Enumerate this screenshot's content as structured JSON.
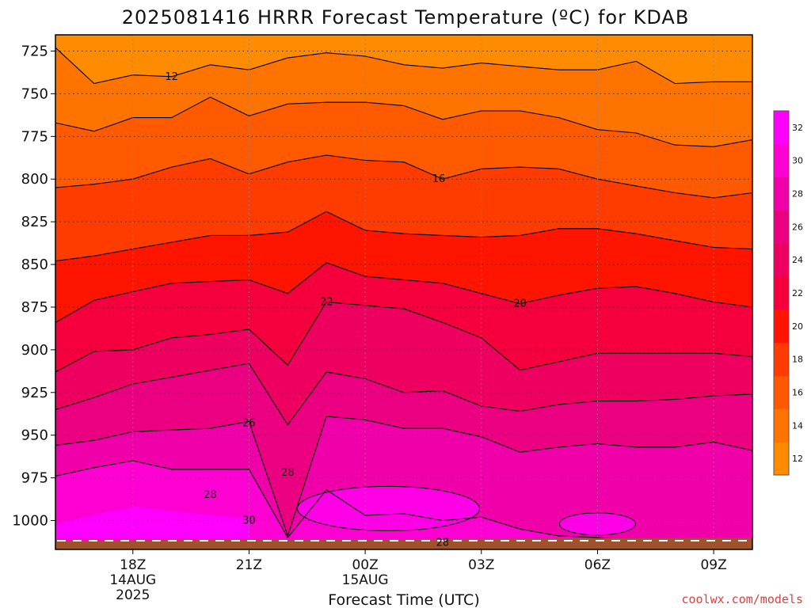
{
  "title": "2025081416 HRRR Forecast Temperature (ºC) for KDAB",
  "xlabel": "Forecast Time (UTC)",
  "credit": "coolwx.com/models",
  "chart_data": {
    "type": "contour",
    "title": "2025081416 HRRR Forecast Temperature (ºC) for KDAB",
    "xlabel": "Forecast Time (UTC)",
    "ylabel": "",
    "x_tick_labels": [
      {
        "hour": 18,
        "lines": [
          "18Z",
          "14AUG",
          "2025"
        ]
      },
      {
        "hour": 21,
        "lines": [
          "21Z"
        ]
      },
      {
        "hour": 24,
        "lines": [
          "00Z",
          "15AUG"
        ]
      },
      {
        "hour": 27,
        "lines": [
          "03Z"
        ]
      },
      {
        "hour": 30,
        "lines": [
          "06Z"
        ]
      },
      {
        "hour": 33,
        "lines": [
          "09Z"
        ]
      }
    ],
    "xlim_hours": [
      16,
      34
    ],
    "y_tick_labels": [
      "725",
      "750",
      "775",
      "800",
      "825",
      "850",
      "875",
      "900",
      "925",
      "950",
      "975",
      "1000"
    ],
    "y_pressure_hPa": [
      725,
      750,
      775,
      800,
      825,
      850,
      875,
      900,
      925,
      950,
      975,
      1000
    ],
    "contour_labels": [
      {
        "text": "12",
        "hour": 19.0,
        "p": 740
      },
      {
        "text": "16",
        "hour": 25.9,
        "p": 800
      },
      {
        "text": "22",
        "hour": 23.0,
        "p": 872
      },
      {
        "text": "20",
        "hour": 28.0,
        "p": 873
      },
      {
        "text": "26",
        "hour": 21.0,
        "p": 943
      },
      {
        "text": "28",
        "hour": 22.0,
        "p": 972
      },
      {
        "text": "28",
        "hour": 20.0,
        "p": 985
      },
      {
        "text": "30",
        "hour": 21.0,
        "p": 1000
      },
      {
        "text": "28",
        "hour": 26.0,
        "p": 1013
      }
    ],
    "colorbar": {
      "labels": [
        "12",
        "14",
        "16",
        "18",
        "20",
        "22",
        "24",
        "26",
        "28",
        "30",
        "32"
      ],
      "colors": [
        "#ff8c00",
        "#ff7300",
        "#ff5a00",
        "#ff3c00",
        "#ff1400",
        "#f5003c",
        "#ee0060",
        "#ea0080",
        "#f000a8",
        "#ff00d2",
        "#ff00ff"
      ]
    },
    "isotherms": [
      {
        "value": 12,
        "points": [
          [
            16,
            723
          ],
          [
            17,
            744
          ],
          [
            18,
            739
          ],
          [
            19,
            740
          ],
          [
            20,
            733
          ],
          [
            21,
            736
          ],
          [
            22,
            729
          ],
          [
            23,
            726
          ],
          [
            24,
            728
          ],
          [
            25,
            733
          ],
          [
            26,
            735
          ],
          [
            27,
            732
          ],
          [
            28,
            734
          ],
          [
            29,
            736
          ],
          [
            30,
            736
          ],
          [
            31,
            731
          ],
          [
            32,
            744
          ],
          [
            33,
            743
          ],
          [
            34,
            743
          ]
        ]
      },
      {
        "value": 14,
        "points": [
          [
            16,
            767
          ],
          [
            17,
            772
          ],
          [
            18,
            764
          ],
          [
            19,
            764
          ],
          [
            20,
            752
          ],
          [
            21,
            763
          ],
          [
            22,
            756
          ],
          [
            23,
            755
          ],
          [
            24,
            755
          ],
          [
            25,
            757
          ],
          [
            26,
            765
          ],
          [
            27,
            760
          ],
          [
            28,
            760
          ],
          [
            29,
            764
          ],
          [
            30,
            771
          ],
          [
            31,
            773
          ],
          [
            32,
            780
          ],
          [
            33,
            781
          ],
          [
            34,
            777
          ]
        ]
      },
      {
        "value": 16,
        "points": [
          [
            16,
            805
          ],
          [
            17,
            803
          ],
          [
            18,
            800
          ],
          [
            19,
            793
          ],
          [
            20,
            788
          ],
          [
            21,
            797
          ],
          [
            22,
            790
          ],
          [
            23,
            786
          ],
          [
            24,
            789
          ],
          [
            25,
            790
          ],
          [
            26,
            800
          ],
          [
            27,
            794
          ],
          [
            28,
            793
          ],
          [
            29,
            794
          ],
          [
            30,
            800
          ],
          [
            31,
            804
          ],
          [
            32,
            808
          ],
          [
            33,
            811
          ],
          [
            34,
            808
          ]
        ]
      },
      {
        "value": 18,
        "points": [
          [
            16,
            848
          ],
          [
            17,
            845
          ],
          [
            18,
            841
          ],
          [
            19,
            837
          ],
          [
            20,
            833
          ],
          [
            21,
            833
          ],
          [
            22,
            831
          ],
          [
            23,
            819
          ],
          [
            24,
            830
          ],
          [
            25,
            832
          ],
          [
            26,
            833
          ],
          [
            27,
            834
          ],
          [
            28,
            833
          ],
          [
            29,
            829
          ],
          [
            30,
            829
          ],
          [
            31,
            832
          ],
          [
            32,
            836
          ],
          [
            33,
            840
          ],
          [
            34,
            841
          ]
        ]
      },
      {
        "value": 20,
        "points": [
          [
            16,
            884
          ],
          [
            17,
            871
          ],
          [
            18,
            866
          ],
          [
            19,
            861
          ],
          [
            20,
            860
          ],
          [
            21,
            859
          ],
          [
            22,
            867
          ],
          [
            23,
            849
          ],
          [
            24,
            857
          ],
          [
            25,
            859
          ],
          [
            26,
            861
          ],
          [
            27,
            867
          ],
          [
            28,
            873
          ],
          [
            29,
            868
          ],
          [
            30,
            864
          ],
          [
            31,
            863
          ],
          [
            32,
            867
          ],
          [
            33,
            872
          ],
          [
            34,
            875
          ]
        ]
      },
      {
        "value": 22,
        "points": [
          [
            16,
            913
          ],
          [
            17,
            901
          ],
          [
            18,
            900
          ],
          [
            19,
            893
          ],
          [
            20,
            891
          ],
          [
            21,
            888
          ],
          [
            22,
            909
          ],
          [
            23,
            872
          ],
          [
            24,
            874
          ],
          [
            25,
            876
          ],
          [
            26,
            884
          ],
          [
            27,
            893
          ],
          [
            28,
            912
          ],
          [
            29,
            907
          ],
          [
            30,
            902
          ],
          [
            31,
            902
          ],
          [
            32,
            902
          ],
          [
            33,
            902
          ],
          [
            34,
            904
          ]
        ]
      },
      {
        "value": 24,
        "points": [
          [
            16,
            935
          ],
          [
            17,
            928
          ],
          [
            18,
            920
          ],
          [
            19,
            916
          ],
          [
            20,
            912
          ],
          [
            21,
            908
          ],
          [
            22,
            944
          ],
          [
            23,
            913
          ],
          [
            24,
            917
          ],
          [
            25,
            925
          ],
          [
            26,
            924
          ],
          [
            27,
            933
          ],
          [
            28,
            936
          ],
          [
            29,
            932
          ],
          [
            30,
            930
          ],
          [
            31,
            930
          ],
          [
            32,
            929
          ],
          [
            33,
            927
          ],
          [
            34,
            926
          ]
        ]
      },
      {
        "value": 26,
        "points": [
          [
            16,
            956
          ],
          [
            17,
            953
          ],
          [
            18,
            948
          ],
          [
            19,
            947
          ],
          [
            20,
            946
          ],
          [
            21,
            942
          ],
          [
            22,
            1009
          ],
          [
            23,
            939
          ],
          [
            24,
            941
          ],
          [
            25,
            946
          ],
          [
            26,
            946
          ],
          [
            27,
            951
          ],
          [
            28,
            960
          ],
          [
            29,
            957
          ],
          [
            30,
            955
          ],
          [
            31,
            957
          ],
          [
            32,
            957
          ],
          [
            33,
            954
          ],
          [
            34,
            959
          ]
        ]
      },
      {
        "value": 28,
        "points": [
          [
            16,
            974
          ],
          [
            17,
            969
          ],
          [
            18,
            965
          ],
          [
            19,
            970
          ],
          [
            20,
            970
          ],
          [
            21,
            970
          ],
          [
            22,
            1010
          ],
          [
            23,
            982
          ],
          [
            24,
            997
          ],
          [
            25,
            996
          ],
          [
            26,
            1000
          ],
          [
            27,
            998
          ],
          [
            28,
            1005
          ],
          [
            29,
            1009
          ],
          [
            30,
            1010
          ],
          [
            31,
            1012
          ],
          [
            32,
            1012
          ],
          [
            33,
            1011
          ],
          [
            34,
            1011
          ]
        ]
      }
    ],
    "series": [
      {
        "name": "",
        "values": []
      }
    ]
  }
}
